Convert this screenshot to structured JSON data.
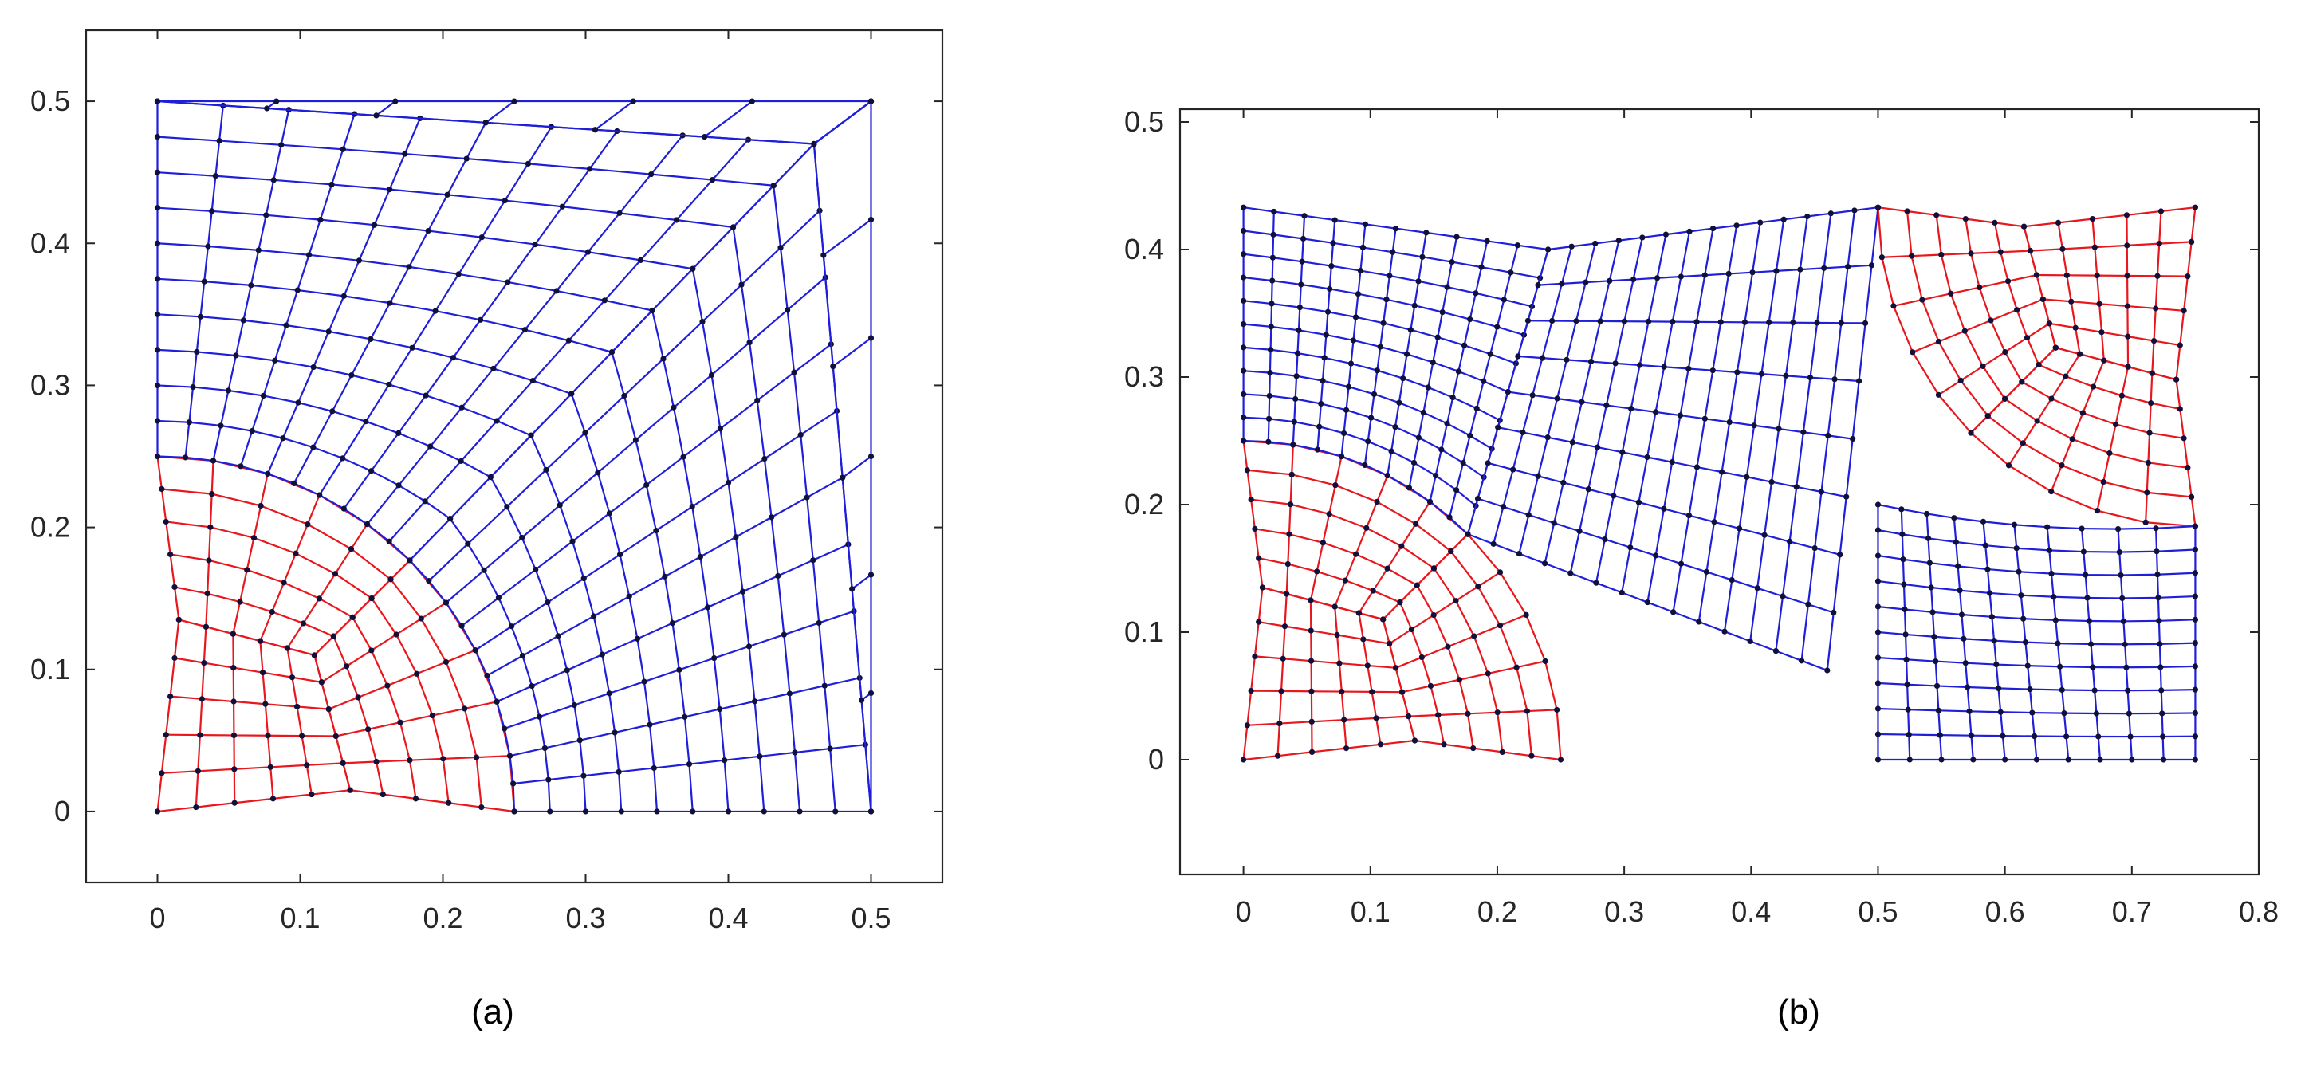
{
  "figure": {
    "panels": [
      {
        "id": "a",
        "caption": "(a)",
        "x_ticks": [
          "0",
          "0.1",
          "0.2",
          "0.3",
          "0.4",
          "0.5"
        ],
        "y_ticks": [
          "0",
          "0.1",
          "0.2",
          "0.3",
          "0.4",
          "0.5"
        ],
        "xlim": [
          -0.05,
          0.55
        ],
        "ylim": [
          -0.05,
          0.55
        ],
        "domain_width": 0.5,
        "domain_height": 0.5,
        "red_region": "quarter-disc mesh of radius 0.25 at the origin",
        "blue_region": "surrounding quadrilateral mesh"
      },
      {
        "id": "b",
        "caption": "(b)",
        "x_ticks": [
          "0",
          "0.1",
          "0.2",
          "0.3",
          "0.4",
          "0.5",
          "0.6",
          "0.7",
          "0.8"
        ],
        "y_ticks": [
          "0",
          "0.1",
          "0.2",
          "0.3",
          "0.4",
          "0.5"
        ],
        "xlim": [
          -0.05,
          0.8
        ],
        "ylim": [
          -0.09,
          0.51
        ],
        "domain_width": 0.75,
        "domain_height": 0.433,
        "red_region": "quarter-disc meshes at the bottom-left and top-right corners",
        "blue_region": "surrounding quadrilateral mesh"
      }
    ],
    "colors": {
      "red_mesh": "#e8171d",
      "blue_mesh": "#1f1fd9",
      "nodes": "#10103a",
      "axes": "#262626"
    }
  }
}
